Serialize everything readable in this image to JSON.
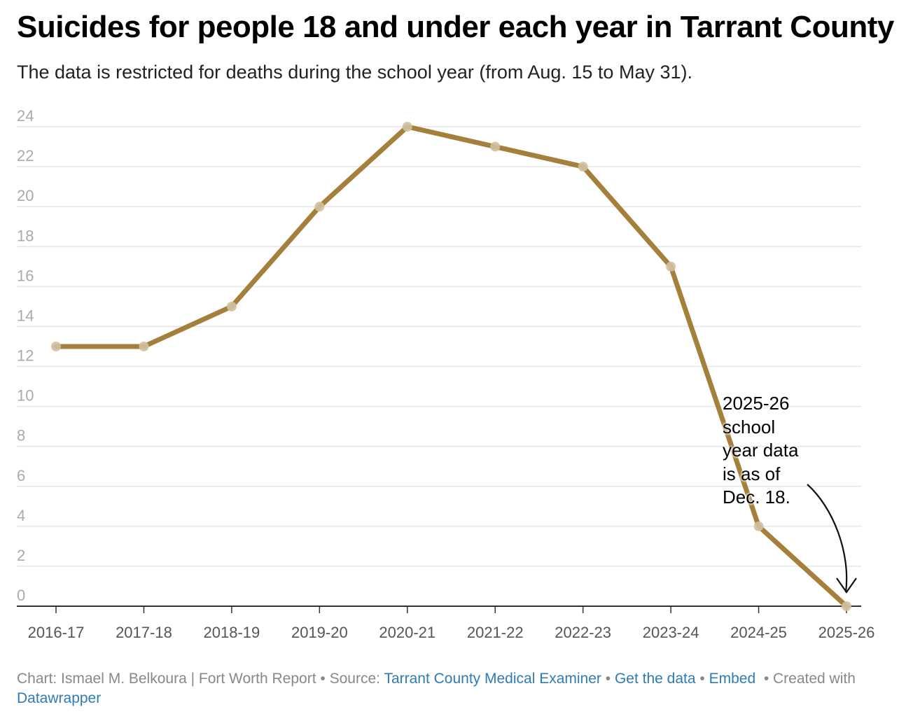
{
  "header": {
    "title": "Suicides for people 18 and under each year in Tarrant County",
    "subtitle": "The data is restricted for deaths during the school year (from Aug. 15 to May 31)."
  },
  "colors": {
    "line": "#a5803c",
    "marker": "#d2c0a0",
    "grid": "#e6e6e6",
    "axis": "#333333",
    "tick_label": "#aaaaaa",
    "x_label": "#555555",
    "link": "#2f7bb5"
  },
  "chart_data": {
    "type": "line",
    "title": "Suicides for people 18 and under each year in Tarrant County",
    "subtitle": "The data is restricted for deaths during the school year (from Aug. 15 to May 31).",
    "categories": [
      "2016-17",
      "2017-18",
      "2018-19",
      "2019-20",
      "2020-21",
      "2021-22",
      "2022-23",
      "2023-24",
      "2024-25",
      "2025-26"
    ],
    "series": [
      {
        "values": [
          13,
          13,
          15,
          20,
          24,
          23,
          22,
          17,
          4,
          0
        ]
      }
    ],
    "ylim": [
      0,
      24
    ],
    "yticks": [
      "0",
      "2",
      "4",
      "6",
      "8",
      "10",
      "12",
      "14",
      "16",
      "18",
      "20",
      "22",
      "24"
    ],
    "grid": true,
    "legend": "none",
    "annotations": [
      {
        "text_lines": [
          "2025-26",
          "school",
          "year data",
          "is as of",
          "Dec. 18."
        ],
        "points_to": "2025-26"
      }
    ]
  },
  "footer": {
    "chart_by": "Chart: Ismael M. Belkoura | Fort Worth Report",
    "source_label": "Source:",
    "source_link": "Tarrant County Medical Examiner",
    "get_data": "Get the data",
    "embed": "Embed",
    "created": "Created with",
    "tool": "Datawrapper",
    "sep": "•"
  }
}
